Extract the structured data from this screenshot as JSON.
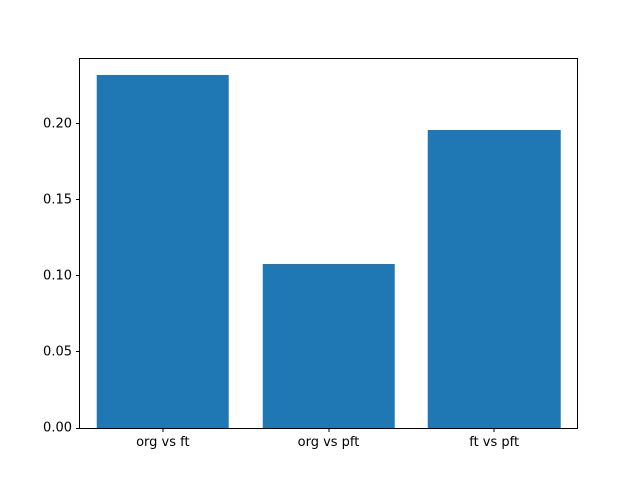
{
  "chart_data": {
    "type": "bar",
    "categories": [
      "org vs ft",
      "org vs pft",
      "ft vs pft"
    ],
    "values": [
      0.232,
      0.108,
      0.196
    ],
    "title": "",
    "xlabel": "",
    "ylabel": "",
    "ylim": [
      0,
      0.2426
    ],
    "yticks": [
      0.0,
      0.05,
      0.1,
      0.15,
      0.2
    ],
    "ytick_labels": [
      "0.00",
      "0.05",
      "0.10",
      "0.15",
      "0.20"
    ],
    "bar_color": "#1f77b4",
    "frame_color": "#000000",
    "background_color": "#ffffff",
    "bar_width_fraction": 0.8,
    "grid": false,
    "legend": null
  }
}
